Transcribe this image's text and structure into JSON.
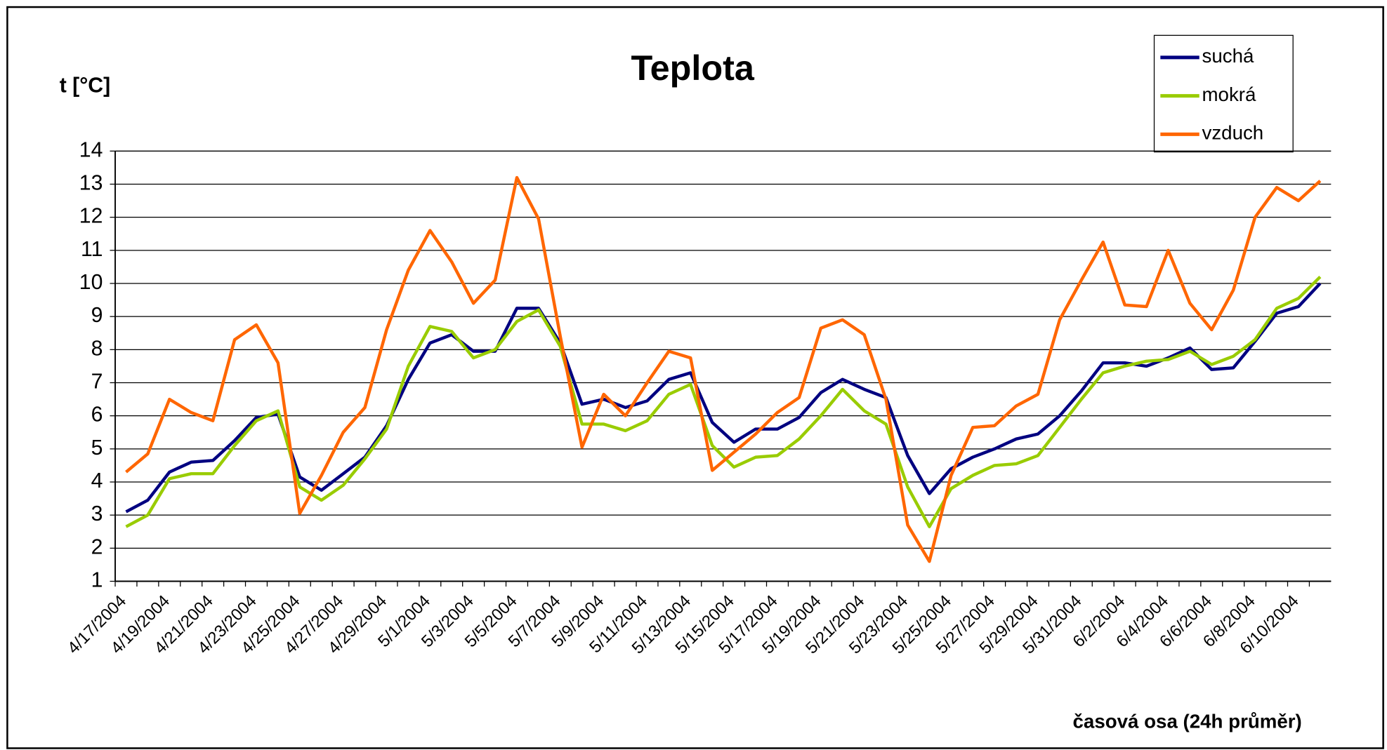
{
  "chart_data": {
    "type": "line",
    "title": "Teplota",
    "y_label": "t [°C]",
    "x_label": "časová osa (24h průměr)",
    "categories": [
      "4/17/2004",
      null,
      "4/19/2004",
      null,
      "4/21/2004",
      null,
      "4/23/2004",
      null,
      "4/25/2004",
      null,
      "4/27/2004",
      null,
      "4/29/2004",
      null,
      "5/1/2004",
      null,
      "5/3/2004",
      null,
      "5/5/2004",
      null,
      "5/7/2004",
      null,
      "5/9/2004",
      null,
      "5/11/2004",
      null,
      "5/13/2004",
      null,
      "5/15/2004",
      null,
      "5/17/2004",
      null,
      "5/19/2004",
      null,
      "5/21/2004",
      null,
      "5/23/2004",
      null,
      "5/25/2004",
      null,
      "5/27/2004",
      null,
      "5/29/2004",
      null,
      "5/31/2004",
      null,
      "6/2/2004",
      null,
      "6/4/2004",
      null,
      "6/6/2004",
      null,
      "6/8/2004",
      null,
      "6/10/2004",
      null
    ],
    "series": [
      {
        "name": "suchá",
        "color": "#000080",
        "values": [
          3.1,
          3.45,
          4.3,
          4.6,
          4.65,
          5.25,
          5.95,
          6.05,
          4.15,
          3.75,
          4.25,
          4.75,
          5.7,
          7.1,
          8.2,
          8.45,
          7.95,
          7.95,
          9.25,
          9.25,
          8.2,
          6.35,
          6.5,
          6.25,
          6.45,
          7.1,
          7.3,
          5.8,
          5.2,
          5.6,
          5.6,
          5.95,
          6.7,
          7.1,
          6.8,
          6.55,
          4.8,
          3.65,
          4.4,
          4.75,
          5.0,
          5.3,
          5.45,
          6.0,
          6.75,
          7.6,
          7.6,
          7.5,
          7.75,
          8.05,
          7.4,
          7.45,
          8.25,
          9.1,
          9.3,
          10.0
        ]
      },
      {
        "name": "mokrá",
        "color": "#99cc00",
        "values": [
          2.65,
          3.0,
          4.1,
          4.25,
          4.25,
          5.1,
          5.85,
          6.15,
          3.85,
          3.45,
          3.9,
          4.7,
          5.6,
          7.5,
          8.7,
          8.55,
          7.75,
          8.0,
          8.85,
          9.2,
          8.1,
          5.75,
          5.75,
          5.55,
          5.85,
          6.65,
          6.95,
          5.1,
          4.45,
          4.75,
          4.8,
          5.3,
          6.0,
          6.8,
          6.15,
          5.75,
          3.85,
          2.65,
          3.8,
          4.2,
          4.5,
          4.55,
          4.8,
          5.65,
          6.5,
          7.3,
          7.5,
          7.65,
          7.7,
          7.95,
          7.55,
          7.8,
          8.3,
          9.25,
          9.55,
          10.2
        ]
      },
      {
        "name": "vzduch",
        "color": "#ff6600",
        "values": [
          4.3,
          4.85,
          6.5,
          6.1,
          5.85,
          8.3,
          8.75,
          7.6,
          3.05,
          4.2,
          5.5,
          6.25,
          8.6,
          10.4,
          11.6,
          10.65,
          9.4,
          10.1,
          13.2,
          11.95,
          8.4,
          5.05,
          6.65,
          6.0,
          7.0,
          7.95,
          7.75,
          4.35,
          4.9,
          5.45,
          6.1,
          6.55,
          8.65,
          8.9,
          8.45,
          6.5,
          2.7,
          1.6,
          4.2,
          5.65,
          5.7,
          6.3,
          6.65,
          8.9,
          10.1,
          11.25,
          9.35,
          9.3,
          11.0,
          9.4,
          8.6,
          9.8,
          12.0,
          12.9,
          12.5,
          13.1
        ]
      }
    ],
    "ylim": [
      1,
      14
    ],
    "yticks": [
      1,
      2,
      3,
      4,
      5,
      6,
      7,
      8,
      9,
      10,
      11,
      12,
      13,
      14
    ],
    "grid": true,
    "legend": "top-right"
  }
}
